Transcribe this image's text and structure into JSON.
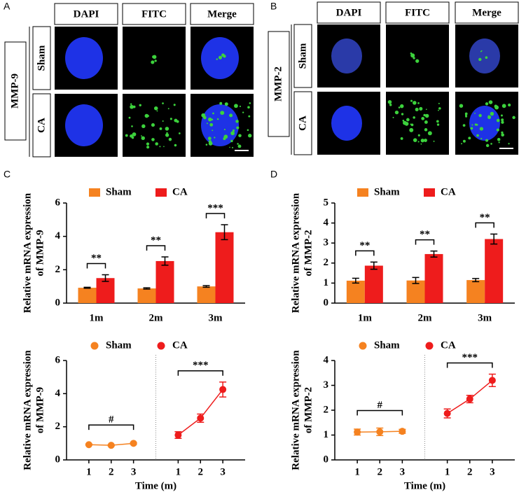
{
  "panel_labels": [
    "A",
    "B",
    "C",
    "D"
  ],
  "image_panels": [
    {
      "marker": "MMP-9",
      "columns": [
        "DAPI",
        "FITC",
        "Merge"
      ],
      "rows": [
        "Sham",
        "CA"
      ]
    },
    {
      "marker": "MMP-2",
      "columns": [
        "DAPI",
        "FITC",
        "Merge"
      ],
      "rows": [
        "Sham",
        "CA"
      ]
    }
  ],
  "chart_data": [
    {
      "type": "bar",
      "ylabel": [
        "Relative mRNA expression",
        "of MMP-9"
      ],
      "categories": [
        "1m",
        "2m",
        "3m"
      ],
      "series": [
        {
          "name": "Sham",
          "color": "#f58220",
          "values": [
            0.92,
            0.88,
            1.0
          ],
          "errors": [
            0.03,
            0.04,
            0.05
          ]
        },
        {
          "name": "CA",
          "color": "#ee1c1c",
          "values": [
            1.5,
            2.52,
            4.25
          ],
          "errors": [
            0.2,
            0.25,
            0.45
          ]
        }
      ],
      "significance": [
        "**",
        "**",
        "***"
      ],
      "ylim": [
        0,
        6
      ],
      "yticks": [
        0,
        2,
        4,
        6
      ],
      "legend": "top"
    },
    {
      "type": "bar",
      "ylabel": [
        "Relative mRNA expression",
        "of MMP-2"
      ],
      "categories": [
        "1m",
        "2m",
        "3m"
      ],
      "series": [
        {
          "name": "Sham",
          "color": "#f58220",
          "values": [
            1.12,
            1.13,
            1.15
          ],
          "errors": [
            0.12,
            0.15,
            0.08
          ]
        },
        {
          "name": "CA",
          "color": "#ee1c1c",
          "values": [
            1.87,
            2.45,
            3.2
          ],
          "errors": [
            0.18,
            0.15,
            0.25
          ]
        }
      ],
      "significance": [
        "**",
        "**",
        "**"
      ],
      "ylim": [
        0,
        5
      ],
      "yticks": [
        0,
        1,
        2,
        3,
        4,
        5
      ],
      "legend": "top"
    },
    {
      "type": "line",
      "ylabel": [
        "Relative mRNA expression",
        "of MMP-9"
      ],
      "xlabel": "Time (m)",
      "x": [
        1,
        2,
        3
      ],
      "series": [
        {
          "name": "Sham",
          "color": "#f58220",
          "values": [
            0.92,
            0.88,
            1.0
          ],
          "errors": [
            0.03,
            0.04,
            0.05
          ]
        },
        {
          "name": "CA",
          "color": "#ee1c1c",
          "values": [
            1.5,
            2.52,
            4.25
          ],
          "errors": [
            0.2,
            0.25,
            0.45
          ]
        }
      ],
      "significance": [
        "#",
        "***"
      ],
      "xlim": [
        0,
        4
      ],
      "xticks": [
        1,
        2,
        3
      ],
      "ylim": [
        0,
        6
      ],
      "yticks": [
        0,
        2,
        4,
        6
      ],
      "legend": "top"
    },
    {
      "type": "line",
      "ylabel": [
        "Relative mRNA expression",
        "of MMP-2"
      ],
      "xlabel": "Time (m)",
      "x": [
        1,
        2,
        3
      ],
      "series": [
        {
          "name": "Sham",
          "color": "#f58220",
          "values": [
            1.12,
            1.13,
            1.15
          ],
          "errors": [
            0.12,
            0.15,
            0.08
          ]
        },
        {
          "name": "CA",
          "color": "#ee1c1c",
          "values": [
            1.87,
            2.45,
            3.2
          ],
          "errors": [
            0.18,
            0.15,
            0.25
          ]
        }
      ],
      "significance": [
        "#",
        "***"
      ],
      "xlim": [
        0,
        4
      ],
      "xticks": [
        1,
        2,
        3
      ],
      "ylim": [
        0,
        4
      ],
      "yticks": [
        0,
        1,
        2,
        3,
        4
      ],
      "legend": "top"
    }
  ]
}
